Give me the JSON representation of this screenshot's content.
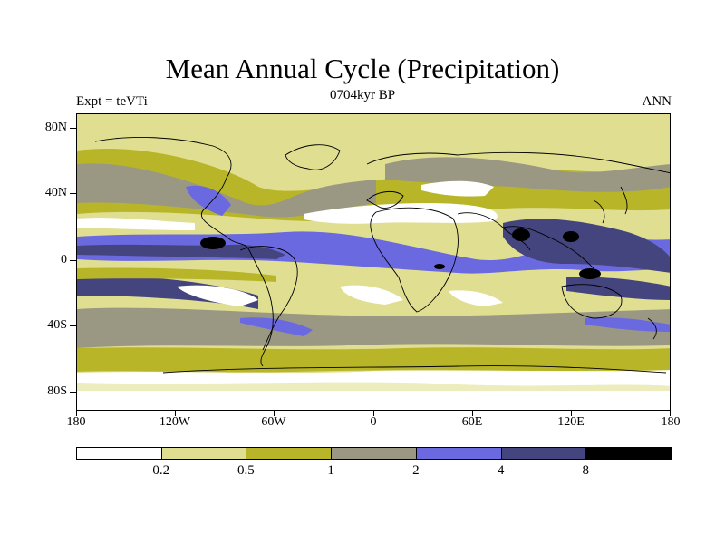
{
  "title": "Mean Annual Cycle (Precipitation)",
  "subtitle": "0704kyr BP",
  "left_label": "Expt = teVTi",
  "right_label": "ANN",
  "lat_labels": [
    "80N",
    "40N",
    "0",
    "40S",
    "80S"
  ],
  "lon_labels": [
    "180",
    "120W",
    "60W",
    "0",
    "60E",
    "120E",
    "180"
  ],
  "colorbar": {
    "colors": [
      "#ffffff",
      "#e0df91",
      "#b8b628",
      "#9a9882",
      "#6b69e0",
      "#44447f",
      "#000000"
    ],
    "labels": [
      "0.2",
      "0.5",
      "1",
      "2",
      "4",
      "8"
    ]
  },
  "palette": {
    "white": "#ffffff",
    "lightyellow": "#e0df91",
    "olive": "#b8b628",
    "gray": "#9a9882",
    "blue": "#6b69e0",
    "darkblue": "#44447f",
    "black": "#000000"
  }
}
